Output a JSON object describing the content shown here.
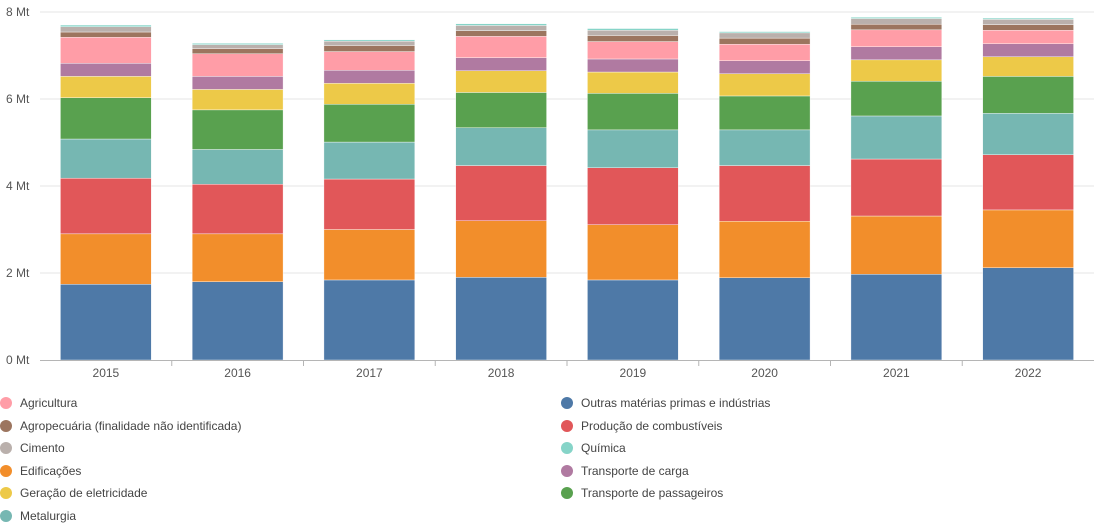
{
  "chart_data": {
    "type": "bar",
    "stacked": true,
    "unit": "Mt",
    "categories": [
      "2015",
      "2016",
      "2017",
      "2018",
      "2019",
      "2020",
      "2021",
      "2022"
    ],
    "y_ticks": [
      "0 Mt",
      "2 Mt",
      "4 Mt",
      "6 Mt",
      "8 Mt"
    ],
    "ylim": [
      0,
      8
    ],
    "grid": true,
    "legend_position": "bottom",
    "series": [
      {
        "name": "Outras matérias primas e indústrias",
        "color": "#4e79a7",
        "values": [
          1.74,
          1.8,
          1.84,
          1.9,
          1.84,
          1.89,
          1.97,
          2.12
        ]
      },
      {
        "name": "Edificações",
        "color": "#f28e2b",
        "values": [
          1.16,
          1.1,
          1.16,
          1.3,
          1.27,
          1.3,
          1.34,
          1.33
        ]
      },
      {
        "name": "Produção de combustíveis",
        "color": "#e15759",
        "values": [
          1.28,
          1.14,
          1.16,
          1.27,
          1.31,
          1.28,
          1.31,
          1.27
        ]
      },
      {
        "name": "Metalurgia",
        "color": "#76b7b2",
        "values": [
          0.9,
          0.8,
          0.85,
          0.87,
          0.87,
          0.82,
          0.99,
          0.95
        ]
      },
      {
        "name": "Transporte de passageiros",
        "color": "#59a14f",
        "values": [
          0.95,
          0.91,
          0.87,
          0.81,
          0.84,
          0.78,
          0.8,
          0.85
        ]
      },
      {
        "name": "Geração de eletricidade",
        "color": "#edc948",
        "values": [
          0.49,
          0.47,
          0.48,
          0.5,
          0.49,
          0.51,
          0.49,
          0.45
        ]
      },
      {
        "name": "Transporte de carga",
        "color": "#b07aa1",
        "values": [
          0.3,
          0.3,
          0.3,
          0.3,
          0.3,
          0.3,
          0.3,
          0.3
        ]
      },
      {
        "name": "Agricultura",
        "color": "#ff9da7",
        "values": [
          0.6,
          0.52,
          0.43,
          0.49,
          0.4,
          0.38,
          0.39,
          0.31
        ]
      },
      {
        "name": "Agropecuária (finalidade não identificada)",
        "color": "#9c755f",
        "values": [
          0.12,
          0.12,
          0.14,
          0.13,
          0.14,
          0.14,
          0.13,
          0.13
        ]
      },
      {
        "name": "Cimento",
        "color": "#bab0ac",
        "values": [
          0.12,
          0.09,
          0.1,
          0.12,
          0.12,
          0.12,
          0.13,
          0.12
        ]
      },
      {
        "name": "Química",
        "color": "#86d4c8",
        "values": [
          0.04,
          0.03,
          0.03,
          0.04,
          0.04,
          0.03,
          0.03,
          0.03
        ]
      }
    ]
  },
  "legend": [
    {
      "label": "Agricultura",
      "color": "#ff9da7"
    },
    {
      "label": "Outras matérias primas e indústrias",
      "color": "#4e79a7"
    },
    {
      "label": "Agropecuária (finalidade não identificada)",
      "color": "#9c755f"
    },
    {
      "label": "Produção de combustíveis",
      "color": "#e15759"
    },
    {
      "label": "Cimento",
      "color": "#bab0ac"
    },
    {
      "label": "Química",
      "color": "#86d4c8"
    },
    {
      "label": "Edificações",
      "color": "#f28e2b"
    },
    {
      "label": "Transporte de carga",
      "color": "#b07aa1"
    },
    {
      "label": "Geração de eletricidade",
      "color": "#edc948"
    },
    {
      "label": "Transporte de passageiros",
      "color": "#59a14f"
    },
    {
      "label": "Metalurgia",
      "color": "#76b7b2"
    }
  ]
}
